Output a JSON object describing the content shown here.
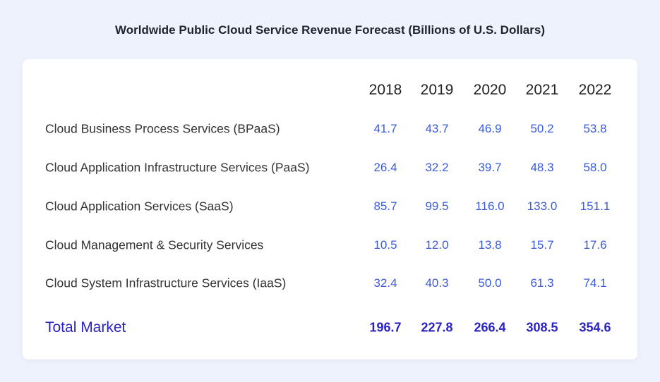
{
  "chart_data": {
    "type": "table",
    "title": "Worldwide Public Cloud Service Revenue Forecast (Billions of U.S. Dollars)",
    "columns": [
      "2018",
      "2019",
      "2020",
      "2021",
      "2022"
    ],
    "rows": [
      {
        "label": "Cloud Business Process Services (BPaaS)",
        "values": [
          "41.7",
          "43.7",
          "46.9",
          "50.2",
          "53.8"
        ]
      },
      {
        "label": "Cloud Application Infrastructure Services (PaaS)",
        "values": [
          "26.4",
          "32.2",
          "39.7",
          "48.3",
          "58.0"
        ]
      },
      {
        "label": "Cloud Application Services (SaaS)",
        "values": [
          "85.7",
          "99.5",
          "116.0",
          "133.0",
          "151.1"
        ]
      },
      {
        "label": "Cloud Management & Security Services",
        "values": [
          "10.5",
          "12.0",
          "13.8",
          "15.7",
          "17.6"
        ]
      },
      {
        "label": "Cloud System Infrastructure Services (IaaS)",
        "values": [
          "32.4",
          "40.3",
          "50.0",
          "61.3",
          "74.1"
        ]
      }
    ],
    "total": {
      "label": "Total Market",
      "values": [
        "196.7",
        "227.8",
        "266.4",
        "308.5",
        "354.6"
      ]
    },
    "colors": {
      "values": "#3b5bdb",
      "total": "#2a22c0",
      "background": "#eef2fc",
      "card": "#ffffff"
    }
  }
}
